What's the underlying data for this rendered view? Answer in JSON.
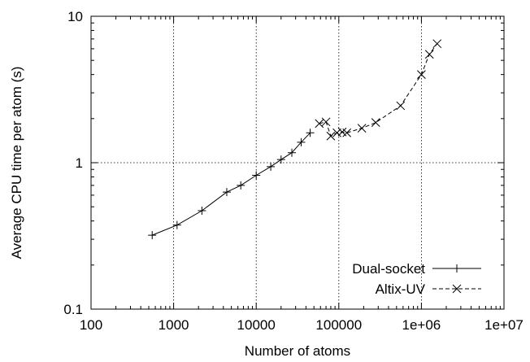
{
  "chart_data": {
    "type": "line",
    "title": "",
    "xlabel": "Number of atoms",
    "ylabel": "Average CPU time per atom (s)",
    "x_scale": "log",
    "y_scale": "log",
    "xlim": [
      100,
      10000000
    ],
    "ylim": [
      0.1,
      10
    ],
    "x_ticks": [
      {
        "value": 100,
        "label": "100"
      },
      {
        "value": 1000,
        "label": "1000"
      },
      {
        "value": 10000,
        "label": "10000"
      },
      {
        "value": 100000,
        "label": "100000"
      },
      {
        "value": 1000000,
        "label": "1e+06"
      },
      {
        "value": 10000000,
        "label": "1e+07"
      }
    ],
    "y_ticks": [
      {
        "value": 0.1,
        "label": "0.1"
      },
      {
        "value": 1,
        "label": "1"
      },
      {
        "value": 10,
        "label": "10"
      }
    ],
    "grid": true,
    "legend_position": "bottom-right",
    "series": [
      {
        "name": "Dual-socket",
        "marker": "plus",
        "line_style": "solid",
        "color": "#000000",
        "points": [
          [
            550,
            0.32
          ],
          [
            1100,
            0.375
          ],
          [
            2200,
            0.47
          ],
          [
            4400,
            0.63
          ],
          [
            6500,
            0.7
          ],
          [
            10000,
            0.82
          ],
          [
            15000,
            0.94
          ],
          [
            20000,
            1.05
          ],
          [
            27000,
            1.17
          ],
          [
            35000,
            1.38
          ],
          [
            45000,
            1.6
          ]
        ]
      },
      {
        "name": "Altix-UV",
        "marker": "cross",
        "line_style": "dashed",
        "color": "#000000",
        "points": [
          [
            58000,
            1.85
          ],
          [
            70000,
            1.9
          ],
          [
            80000,
            1.52
          ],
          [
            95000,
            1.6
          ],
          [
            110000,
            1.62
          ],
          [
            125000,
            1.6
          ],
          [
            190000,
            1.72
          ],
          [
            280000,
            1.88
          ],
          [
            560000,
            2.45
          ],
          [
            1000000,
            4.0
          ],
          [
            1250000,
            5.5
          ],
          [
            1550000,
            6.5
          ]
        ]
      }
    ]
  }
}
